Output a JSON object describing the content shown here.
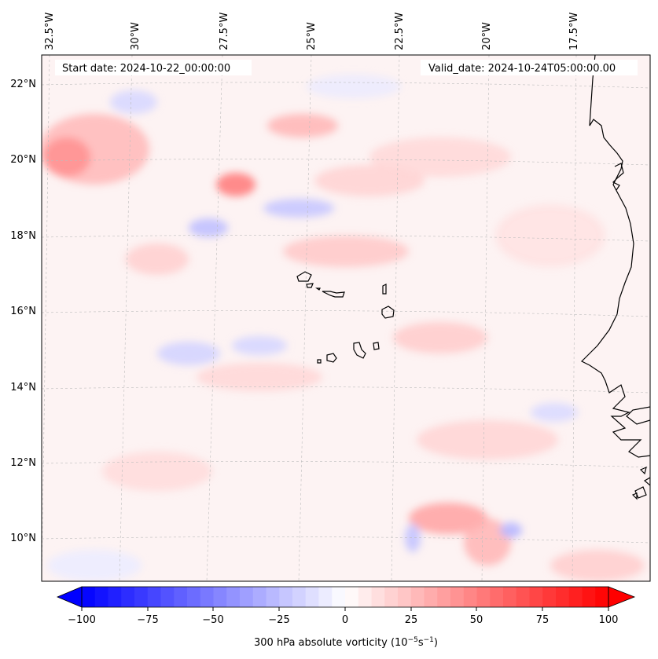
{
  "header": {
    "start_date": "Start date: 2024-10-22_00:00:00",
    "valid_date": "Valid_date: 2024-10-24T05:00:00.00"
  },
  "longitude_labels": [
    "32.5°W",
    "30°W",
    "27.5°W",
    "25°W",
    "22.5°W",
    "20°W",
    "17.5°W"
  ],
  "latitude_labels": [
    "22°N",
    "20°N",
    "18°N",
    "16°N",
    "14°N",
    "12°N",
    "10°N"
  ],
  "colorbar": {
    "label_text": "300 hPa absolute vorticity (10",
    "label_exp1": "−5",
    "label_mid": "s",
    "label_exp2": "−1",
    "label_close": ")",
    "tick_labels": [
      "−100",
      "−75",
      "−50",
      "−25",
      "0",
      "25",
      "50",
      "75",
      "100"
    ],
    "min": -100,
    "max": 100,
    "colormap": "bwr",
    "extend": "both"
  },
  "map": {
    "projection": "lambert-conformal",
    "gridlines": true,
    "coastline_color": "#000000",
    "field_colors": {
      "negative": "#0000ff",
      "neutral": "#ffffff",
      "positive": "#ff0000"
    }
  }
}
